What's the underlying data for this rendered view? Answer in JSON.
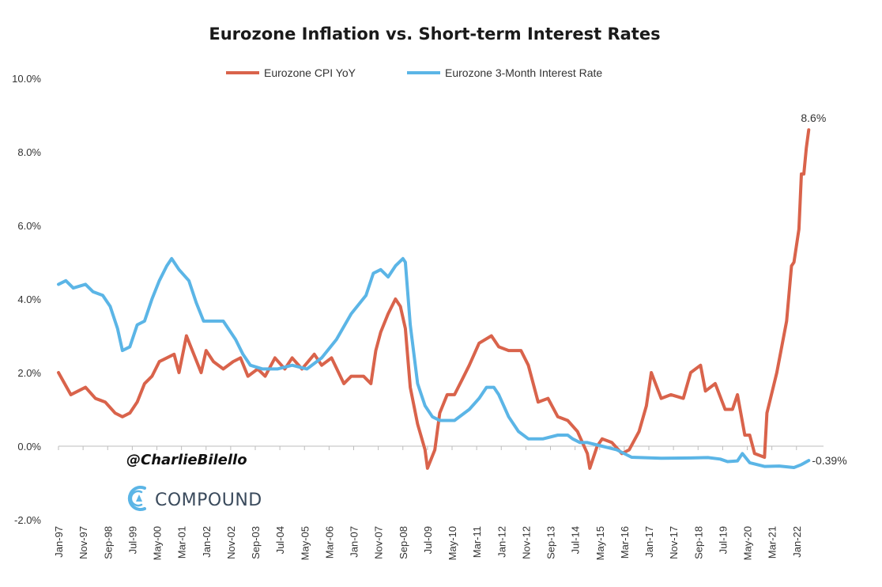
{
  "chart_data": {
    "type": "line",
    "title": "Eurozone Inflation vs. Short-term Interest Rates",
    "ylim": [
      -2.0,
      10.0
    ],
    "y_ticks": [
      "-2.0%",
      "0.0%",
      "2.0%",
      "4.0%",
      "6.0%",
      "8.0%",
      "10.0%"
    ],
    "x_range": [
      "1997-01",
      "2022-12"
    ],
    "x_ticks": [
      "Jan-97",
      "Nov-97",
      "Sep-98",
      "Jul-99",
      "May-00",
      "Mar-01",
      "Jan-02",
      "Nov-02",
      "Sep-03",
      "Jul-04",
      "May-05",
      "Mar-06",
      "Jan-07",
      "Nov-07",
      "Sep-08",
      "Jul-09",
      "May-10",
      "Mar-11",
      "Jan-12",
      "Nov-12",
      "Sep-13",
      "Jul-14",
      "May-15",
      "Mar-16",
      "Jan-17",
      "Nov-17",
      "Sep-18",
      "Jul-19",
      "May-20",
      "Mar-21",
      "Jan-22"
    ],
    "legend_position": "top",
    "grid": false,
    "series": [
      {
        "name": "Eurozone CPI YoY",
        "color": "#d9634b",
        "points": [
          [
            "1997-01",
            2.0
          ],
          [
            "1997-06",
            1.4
          ],
          [
            "1997-12",
            1.6
          ],
          [
            "1998-04",
            1.3
          ],
          [
            "1998-08",
            1.2
          ],
          [
            "1998-12",
            0.9
          ],
          [
            "1999-03",
            0.8
          ],
          [
            "1999-06",
            0.9
          ],
          [
            "1999-09",
            1.2
          ],
          [
            "1999-12",
            1.7
          ],
          [
            "2000-03",
            1.9
          ],
          [
            "2000-06",
            2.3
          ],
          [
            "2000-09",
            2.4
          ],
          [
            "2000-12",
            2.5
          ],
          [
            "2001-02",
            2.0
          ],
          [
            "2001-05",
            3.0
          ],
          [
            "2001-08",
            2.5
          ],
          [
            "2001-11",
            2.0
          ],
          [
            "2002-01",
            2.6
          ],
          [
            "2002-04",
            2.3
          ],
          [
            "2002-08",
            2.1
          ],
          [
            "2002-12",
            2.3
          ],
          [
            "2003-03",
            2.4
          ],
          [
            "2003-06",
            1.9
          ],
          [
            "2003-10",
            2.1
          ],
          [
            "2004-01",
            1.9
          ],
          [
            "2004-05",
            2.4
          ],
          [
            "2004-09",
            2.1
          ],
          [
            "2004-12",
            2.4
          ],
          [
            "2005-04",
            2.1
          ],
          [
            "2005-09",
            2.5
          ],
          [
            "2005-12",
            2.2
          ],
          [
            "2006-04",
            2.4
          ],
          [
            "2006-09",
            1.7
          ],
          [
            "2006-12",
            1.9
          ],
          [
            "2007-05",
            1.9
          ],
          [
            "2007-08",
            1.7
          ],
          [
            "2007-10",
            2.6
          ],
          [
            "2007-12",
            3.1
          ],
          [
            "2008-03",
            3.6
          ],
          [
            "2008-06",
            4.0
          ],
          [
            "2008-08",
            3.8
          ],
          [
            "2008-10",
            3.2
          ],
          [
            "2008-12",
            1.6
          ],
          [
            "2009-03",
            0.6
          ],
          [
            "2009-06",
            -0.1
          ],
          [
            "2009-07",
            -0.6
          ],
          [
            "2009-10",
            -0.1
          ],
          [
            "2009-12",
            0.9
          ],
          [
            "2010-03",
            1.4
          ],
          [
            "2010-06",
            1.4
          ],
          [
            "2010-09",
            1.8
          ],
          [
            "2010-12",
            2.2
          ],
          [
            "2011-04",
            2.8
          ],
          [
            "2011-09",
            3.0
          ],
          [
            "2011-12",
            2.7
          ],
          [
            "2012-04",
            2.6
          ],
          [
            "2012-09",
            2.6
          ],
          [
            "2012-12",
            2.2
          ],
          [
            "2013-04",
            1.2
          ],
          [
            "2013-08",
            1.3
          ],
          [
            "2013-12",
            0.8
          ],
          [
            "2014-04",
            0.7
          ],
          [
            "2014-08",
            0.4
          ],
          [
            "2014-12",
            -0.2
          ],
          [
            "2015-01",
            -0.6
          ],
          [
            "2015-04",
            0.0
          ],
          [
            "2015-06",
            0.2
          ],
          [
            "2015-10",
            0.1
          ],
          [
            "2016-02",
            -0.2
          ],
          [
            "2016-05",
            -0.1
          ],
          [
            "2016-09",
            0.4
          ],
          [
            "2016-12",
            1.1
          ],
          [
            "2017-02",
            2.0
          ],
          [
            "2017-06",
            1.3
          ],
          [
            "2017-10",
            1.4
          ],
          [
            "2018-03",
            1.3
          ],
          [
            "2018-06",
            2.0
          ],
          [
            "2018-10",
            2.2
          ],
          [
            "2018-12",
            1.5
          ],
          [
            "2019-04",
            1.7
          ],
          [
            "2019-08",
            1.0
          ],
          [
            "2019-11",
            1.0
          ],
          [
            "2020-01",
            1.4
          ],
          [
            "2020-04",
            0.3
          ],
          [
            "2020-06",
            0.3
          ],
          [
            "2020-08",
            -0.2
          ],
          [
            "2020-12",
            -0.3
          ],
          [
            "2021-01",
            0.9
          ],
          [
            "2021-05",
            2.0
          ],
          [
            "2021-09",
            3.4
          ],
          [
            "2021-11",
            4.9
          ],
          [
            "2021-12",
            5.0
          ],
          [
            "2022-02",
            5.9
          ],
          [
            "2022-03",
            7.4
          ],
          [
            "2022-04",
            7.4
          ],
          [
            "2022-05",
            8.1
          ],
          [
            "2022-06",
            8.6
          ]
        ]
      },
      {
        "name": "Eurozone 3-Month Interest Rate",
        "color": "#5bb5e6",
        "points": [
          [
            "1997-01",
            4.4
          ],
          [
            "1997-04",
            4.5
          ],
          [
            "1997-07",
            4.3
          ],
          [
            "1997-12",
            4.4
          ],
          [
            "1998-03",
            4.2
          ],
          [
            "1998-07",
            4.1
          ],
          [
            "1998-10",
            3.8
          ],
          [
            "1999-01",
            3.2
          ],
          [
            "1999-03",
            2.6
          ],
          [
            "1999-06",
            2.7
          ],
          [
            "1999-09",
            3.3
          ],
          [
            "1999-12",
            3.4
          ],
          [
            "2000-03",
            4.0
          ],
          [
            "2000-06",
            4.5
          ],
          [
            "2000-09",
            4.9
          ],
          [
            "2000-11",
            5.1
          ],
          [
            "2001-02",
            4.8
          ],
          [
            "2001-06",
            4.5
          ],
          [
            "2001-09",
            3.9
          ],
          [
            "2001-12",
            3.4
          ],
          [
            "2002-04",
            3.4
          ],
          [
            "2002-08",
            3.4
          ],
          [
            "2002-11",
            3.1
          ],
          [
            "2003-01",
            2.9
          ],
          [
            "2003-04",
            2.5
          ],
          [
            "2003-07",
            2.2
          ],
          [
            "2003-12",
            2.1
          ],
          [
            "2004-06",
            2.1
          ],
          [
            "2004-12",
            2.2
          ],
          [
            "2005-06",
            2.1
          ],
          [
            "2005-12",
            2.4
          ],
          [
            "2006-06",
            2.9
          ],
          [
            "2006-12",
            3.6
          ],
          [
            "2007-06",
            4.1
          ],
          [
            "2007-09",
            4.7
          ],
          [
            "2007-12",
            4.8
          ],
          [
            "2008-03",
            4.6
          ],
          [
            "2008-06",
            4.9
          ],
          [
            "2008-09",
            5.1
          ],
          [
            "2008-10",
            5.0
          ],
          [
            "2008-12",
            3.3
          ],
          [
            "2009-03",
            1.7
          ],
          [
            "2009-06",
            1.1
          ],
          [
            "2009-09",
            0.8
          ],
          [
            "2009-12",
            0.7
          ],
          [
            "2010-06",
            0.7
          ],
          [
            "2010-12",
            1.0
          ],
          [
            "2011-04",
            1.3
          ],
          [
            "2011-07",
            1.6
          ],
          [
            "2011-10",
            1.6
          ],
          [
            "2011-12",
            1.4
          ],
          [
            "2012-04",
            0.8
          ],
          [
            "2012-08",
            0.4
          ],
          [
            "2012-12",
            0.2
          ],
          [
            "2013-06",
            0.2
          ],
          [
            "2013-12",
            0.3
          ],
          [
            "2014-04",
            0.3
          ],
          [
            "2014-06",
            0.2
          ],
          [
            "2014-09",
            0.1
          ],
          [
            "2014-12",
            0.1
          ],
          [
            "2015-06",
            0.0
          ],
          [
            "2015-12",
            -0.1
          ],
          [
            "2016-06",
            -0.3
          ],
          [
            "2017-06",
            -0.33
          ],
          [
            "2018-06",
            -0.32
          ],
          [
            "2019-01",
            -0.31
          ],
          [
            "2019-06",
            -0.35
          ],
          [
            "2019-09",
            -0.42
          ],
          [
            "2020-01",
            -0.4
          ],
          [
            "2020-03",
            -0.2
          ],
          [
            "2020-06",
            -0.45
          ],
          [
            "2020-12",
            -0.55
          ],
          [
            "2021-06",
            -0.54
          ],
          [
            "2021-12",
            -0.58
          ],
          [
            "2022-03",
            -0.5
          ],
          [
            "2022-06",
            -0.39
          ]
        ]
      }
    ],
    "annotations": [
      {
        "label": "8.6%",
        "series": 0
      },
      {
        "label": "-0.39%",
        "series": 1
      }
    ]
  },
  "watermark": {
    "handle": "@CharlieBilello",
    "brand": "COMPOUND"
  }
}
